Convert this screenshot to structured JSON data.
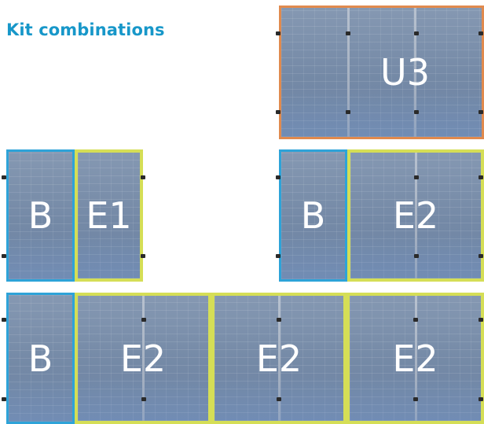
{
  "title": "Kit combinations",
  "combinations": [
    {
      "name": "U3",
      "panels": [
        {
          "label": "U3",
          "type": "U",
          "color": "#e08a4e"
        }
      ]
    },
    {
      "name": "B + E1",
      "panels": [
        {
          "label": "B",
          "type": "B",
          "color": "#2ea3d8"
        },
        {
          "label": "E1",
          "type": "E",
          "color": "#d5de56"
        }
      ]
    },
    {
      "name": "B + E2",
      "panels": [
        {
          "label": "B",
          "type": "B",
          "color": "#2ea3d8"
        },
        {
          "label": "E2",
          "type": "E",
          "color": "#d5de56"
        }
      ]
    },
    {
      "name": "B + E2 + E2 + E2",
      "panels": [
        {
          "label": "B",
          "type": "B",
          "color": "#2ea3d8"
        },
        {
          "label": "E2",
          "type": "E",
          "color": "#d5de56"
        },
        {
          "label": "E2",
          "type": "E",
          "color": "#d5de56"
        },
        {
          "label": "E2",
          "type": "E",
          "color": "#d5de56"
        }
      ]
    }
  ]
}
